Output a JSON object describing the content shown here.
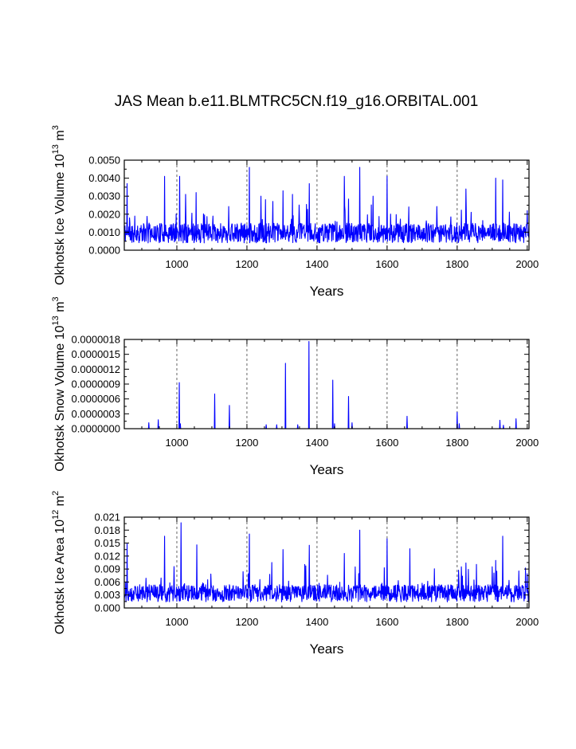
{
  "title": "JAS Mean b.e11.BLMTRC5CN.f19_g16.ORBITAL.001",
  "colors": {
    "series": "#0000ff",
    "axis": "#000000",
    "grid": "#555555"
  },
  "chart_data": [
    {
      "type": "line",
      "series_name": "Okhotsk Ice Volume",
      "xlabel": "Years",
      "ylabel_main": "Okhotsk Ice Volume 10",
      "ylabel_exp": "13",
      "ylabel_unit": " m",
      "ylabel_unit_exp": "3",
      "xlim": [
        850,
        2005
      ],
      "ylim": [
        0,
        0.005
      ],
      "x_ticks": [
        1000,
        1200,
        1400,
        1600,
        1800,
        2000
      ],
      "x_tick_labels": [
        "1000",
        "1200",
        "1400",
        "1600",
        "1800",
        "2000"
      ],
      "y_ticks": [
        0,
        0.001,
        0.002,
        0.003,
        0.004,
        0.005
      ],
      "y_tick_labels": [
        "0.0000",
        "0.0010",
        "0.0020",
        "0.0030",
        "0.0040",
        "0.0050"
      ],
      "grid_x": [
        1000,
        1200,
        1400,
        1600,
        1800
      ],
      "baseline": 0.0009,
      "spread": 0.00055,
      "floor": 5e-05,
      "spike_prob": 0.07,
      "spike_scale": 0.0015,
      "ymax": 0.0048,
      "seed": 11,
      "peaks": [
        [
          858,
          0.0037
        ],
        [
          965,
          0.0041
        ],
        [
          1008,
          0.0041
        ],
        [
          1025,
          0.0031
        ],
        [
          1055,
          0.0032
        ],
        [
          1207,
          0.0046
        ],
        [
          1240,
          0.003
        ],
        [
          1303,
          0.0033
        ],
        [
          1330,
          0.0031
        ],
        [
          1378,
          0.0037
        ],
        [
          1478,
          0.0041
        ],
        [
          1522,
          0.0046
        ],
        [
          1560,
          0.003
        ],
        [
          1600,
          0.0041
        ],
        [
          1825,
          0.0034
        ],
        [
          1910,
          0.004
        ],
        [
          1930,
          0.0039
        ],
        [
          2000,
          0.0022
        ]
      ]
    },
    {
      "type": "line",
      "series_name": "Okhotsk Snow Volume",
      "xlabel": "Years",
      "ylabel_main": "Okhotsk Snow Volume 10",
      "ylabel_exp": "13",
      "ylabel_unit": " m",
      "ylabel_unit_exp": "3",
      "xlim": [
        850,
        2005
      ],
      "ylim": [
        0,
        1.8e-06
      ],
      "x_ticks": [
        1000,
        1200,
        1400,
        1600,
        1800,
        2000
      ],
      "x_tick_labels": [
        "1000",
        "1200",
        "1400",
        "1600",
        "1800",
        "2000"
      ],
      "y_ticks": [
        0,
        3e-07,
        6e-07,
        9e-07,
        1.2e-06,
        1.5e-06,
        1.8e-06
      ],
      "y_tick_labels": [
        "0.0000000",
        "0.0000003",
        "0.0000006",
        "0.0000009",
        "0.0000012",
        "0.0000015",
        "0.0000018"
      ],
      "grid_x": [
        1000,
        1200,
        1400,
        1600,
        1800
      ],
      "baseline": 0,
      "spread": 0,
      "floor": 0,
      "spike_prob": 0,
      "spike_scale": 0,
      "ymax": 1.8e-06,
      "seed": 5,
      "peaks": [
        [
          920,
          1.2e-07
        ],
        [
          947,
          1.8e-07
        ],
        [
          1007,
          9.3e-07
        ],
        [
          1010,
          1e-07
        ],
        [
          1108,
          7e-07
        ],
        [
          1150,
          4.7e-07
        ],
        [
          1255,
          8e-08
        ],
        [
          1285,
          8e-08
        ],
        [
          1310,
          1.32e-06
        ],
        [
          1345,
          8e-08
        ],
        [
          1377,
          1.76e-06
        ],
        [
          1445,
          9.8e-07
        ],
        [
          1450,
          1e-07
        ],
        [
          1490,
          6.5e-07
        ],
        [
          1500,
          1.2e-07
        ],
        [
          1657,
          2.5e-07
        ],
        [
          1800,
          3.3e-07
        ],
        [
          1806,
          1e-07
        ],
        [
          1922,
          1.7e-07
        ],
        [
          1932,
          7e-08
        ],
        [
          1968,
          2e-07
        ]
      ]
    },
    {
      "type": "line",
      "series_name": "Okhotsk Ice Area",
      "xlabel": "Years",
      "ylabel_main": "Okhotsk Ice Area 10",
      "ylabel_exp": "12",
      "ylabel_unit": " m",
      "ylabel_unit_exp": "2",
      "xlim": [
        850,
        2005
      ],
      "ylim": [
        0,
        0.021
      ],
      "x_ticks": [
        1000,
        1200,
        1400,
        1600,
        1800,
        2000
      ],
      "x_tick_labels": [
        "1000",
        "1200",
        "1400",
        "1600",
        "1800",
        "2000"
      ],
      "y_ticks": [
        0,
        0.003,
        0.006,
        0.009,
        0.012,
        0.015,
        0.018,
        0.021
      ],
      "y_tick_labels": [
        "0.000",
        "0.003",
        "0.006",
        "0.009",
        "0.012",
        "0.015",
        "0.018",
        "0.021"
      ],
      "grid_x": [
        1000,
        1200,
        1400,
        1600,
        1800
      ],
      "baseline": 0.0032,
      "spread": 0.002,
      "floor": 0.0003,
      "spike_prob": 0.07,
      "spike_scale": 0.0055,
      "ymax": 0.0195,
      "seed": 29,
      "peaks": [
        [
          858,
          0.0149
        ],
        [
          965,
          0.0166
        ],
        [
          1012,
          0.0197
        ],
        [
          1057,
          0.0146
        ],
        [
          1207,
          0.0171
        ],
        [
          1303,
          0.0135
        ],
        [
          1378,
          0.0145
        ],
        [
          1478,
          0.0126
        ],
        [
          1522,
          0.018
        ],
        [
          1600,
          0.016
        ],
        [
          1665,
          0.0137
        ],
        [
          1825,
          0.0104
        ],
        [
          1910,
          0.011
        ],
        [
          1930,
          0.0166
        ],
        [
          2000,
          0.0079
        ]
      ]
    }
  ]
}
